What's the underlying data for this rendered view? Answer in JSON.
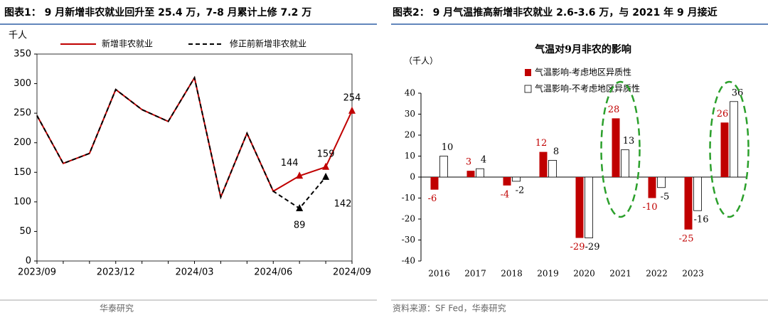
{
  "chart_data": [
    {
      "type": "line",
      "title": "图表1：  9 月新增非农就业回升至 25.4 万，7-8 月累计上修 7.2 万",
      "y_label": "千人",
      "source": "华泰研究",
      "categories": [
        "2023/09",
        null,
        null,
        "2023/12",
        null,
        null,
        "2024/03",
        null,
        null,
        "2024/06",
        null,
        null,
        "2024/09"
      ],
      "series": [
        {
          "name": "新增非农就业",
          "color": "#c00000",
          "dash": false,
          "values": [
            246,
            165,
            182,
            290,
            256,
            236,
            310,
            108,
            216,
            118,
            144,
            159,
            254
          ]
        },
        {
          "name": "修正前新增非农就业",
          "color": "#000000",
          "dash": true,
          "values": [
            246,
            165,
            182,
            290,
            256,
            236,
            310,
            108,
            216,
            118,
            89,
            142,
            null
          ]
        }
      ],
      "ylim": [
        0,
        350
      ],
      "yticks": [
        0,
        50,
        100,
        150,
        200,
        250,
        300,
        350
      ]
    },
    {
      "type": "bar",
      "title": "图表2：  9 月气温推高新增非农就业 2.6-3.6 万，与 2021 年 9 月接近",
      "subtitle": "气温对9月非农的影响",
      "y_label": "（千人）",
      "source": "资料来源：SF Fed，华泰研究",
      "categories": [
        "2016",
        "2017",
        "2018",
        "2019",
        "2020",
        "2021",
        "2022",
        "2023",
        null
      ],
      "series": [
        {
          "name": "气温影响-考虑地区异质性",
          "color": "#c00000",
          "values": [
            -6,
            3,
            -4,
            12,
            -29,
            28,
            -10,
            -25,
            26
          ]
        },
        {
          "name": "气温影响-不考虑地区异质性",
          "color": "#ffffff",
          "values": [
            10,
            4,
            -2,
            8,
            -29,
            13,
            -5,
            -16,
            36
          ]
        }
      ],
      "ylim": [
        -40,
        40
      ],
      "yticks": [
        -40,
        -30,
        -20,
        -10,
        0,
        10,
        20,
        30,
        40
      ]
    }
  ]
}
